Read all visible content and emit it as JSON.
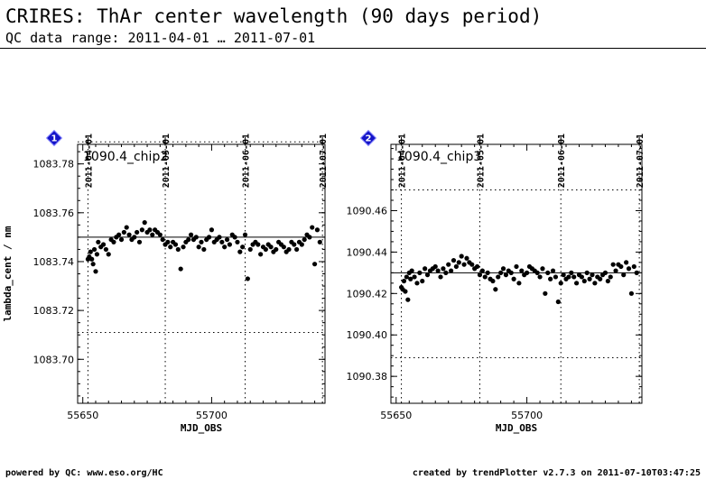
{
  "header": {
    "title": "CRIRES: ThAr center wavelength (90 days period)",
    "subtitle": "QC data range: 2011-04-01 … 2011-07-01"
  },
  "footer": {
    "left": "powered by QC: www.eso.org/HC",
    "right": "created by trendPlotter v2.7.3 on 2011-07-10T03:47:25"
  },
  "colors": {
    "points": "#000000",
    "badge": "#1515c8",
    "background": "#ffffff"
  },
  "chart_data": [
    {
      "type": "scatter",
      "badge": "1",
      "label": "1090.4_chip2",
      "xlabel": "MJD_OBS",
      "ylabel": "lambda_cent / nm",
      "xlim": [
        55648,
        55744
      ],
      "ylim": [
        1083.682,
        1083.788
      ],
      "x_ticks": [
        "55650",
        "55700"
      ],
      "x_tick_values": [
        55650,
        55700
      ],
      "y_ticks": [
        "1083.70",
        "1083.72",
        "1083.74",
        "1083.76",
        "1083.78"
      ],
      "y_tick_values": [
        1083.7,
        1083.72,
        1083.74,
        1083.76,
        1083.78
      ],
      "top_dates": [
        "2011-04-01",
        "2011-05-01",
        "2011-06-01",
        "2011-07-01"
      ],
      "top_date_values": [
        55652,
        55682,
        55713,
        55743
      ],
      "reference_line": 1083.75,
      "threshold_lines": [
        1083.711,
        1083.789
      ],
      "x": [
        55652.0,
        55652.5,
        55653.0,
        55653.5,
        55654.0,
        55654.5,
        55655.0,
        55655.5,
        55656.0,
        55657.0,
        55658.0,
        55659.0,
        55660.0,
        55661.0,
        55662.0,
        55663.0,
        55664.0,
        55665.0,
        55666.0,
        55667.0,
        55668.0,
        55669.0,
        55670.0,
        55671.0,
        55672.0,
        55673.0,
        55674.0,
        55675.0,
        55676.0,
        55677.0,
        55678.0,
        55679.0,
        55680.0,
        55681.0,
        55682.0,
        55683.0,
        55684.0,
        55685.0,
        55686.0,
        55687.0,
        55688.0,
        55689.0,
        55690.0,
        55691.0,
        55692.0,
        55693.0,
        55694.0,
        55695.0,
        55696.0,
        55697.0,
        55698.0,
        55699.0,
        55700.0,
        55701.0,
        55702.0,
        55703.0,
        55704.0,
        55705.0,
        55706.0,
        55707.0,
        55708.0,
        55709.0,
        55710.0,
        55711.0,
        55712.0,
        55713.0,
        55714.0,
        55715.0,
        55716.0,
        55717.0,
        55718.0,
        55719.0,
        55720.0,
        55721.0,
        55722.0,
        55723.0,
        55724.0,
        55725.0,
        55726.0,
        55727.0,
        55728.0,
        55729.0,
        55730.0,
        55731.0,
        55732.0,
        55733.0,
        55734.0,
        55735.0,
        55736.0,
        55737.0,
        55738.0,
        55739.0,
        55740.0,
        55741.0,
        55742.0
      ],
      "y": [
        1083.741,
        1083.742,
        1083.744,
        1083.741,
        1083.739,
        1083.745,
        1083.736,
        1083.743,
        1083.748,
        1083.746,
        1083.747,
        1083.745,
        1083.743,
        1083.749,
        1083.748,
        1083.75,
        1083.751,
        1083.749,
        1083.752,
        1083.754,
        1083.751,
        1083.749,
        1083.75,
        1083.752,
        1083.748,
        1083.753,
        1083.756,
        1083.752,
        1083.753,
        1083.751,
        1083.753,
        1083.752,
        1083.751,
        1083.749,
        1083.747,
        1083.748,
        1083.746,
        1083.748,
        1083.747,
        1083.745,
        1083.737,
        1083.746,
        1083.748,
        1083.749,
        1083.751,
        1083.749,
        1083.75,
        1083.746,
        1083.748,
        1083.745,
        1083.749,
        1083.75,
        1083.753,
        1083.748,
        1083.749,
        1083.75,
        1083.748,
        1083.746,
        1083.749,
        1083.747,
        1083.751,
        1083.75,
        1083.748,
        1083.744,
        1083.746,
        1083.751,
        1083.733,
        1083.745,
        1083.747,
        1083.748,
        1083.747,
        1083.743,
        1083.746,
        1083.745,
        1083.747,
        1083.746,
        1083.744,
        1083.745,
        1083.748,
        1083.747,
        1083.746,
        1083.744,
        1083.745,
        1083.748,
        1083.747,
        1083.745,
        1083.748,
        1083.747,
        1083.749,
        1083.751,
        1083.75,
        1083.754,
        1083.739,
        1083.753,
        1083.748
      ]
    },
    {
      "type": "scatter",
      "badge": "2",
      "label": "1090.4_chip3",
      "xlabel": "MJD_OBS",
      "ylabel": "",
      "xlim": [
        55648,
        55744
      ],
      "ylim": [
        1090.367,
        1090.492
      ],
      "x_ticks": [
        "55650",
        "55700"
      ],
      "x_tick_values": [
        55650,
        55700
      ],
      "y_ticks": [
        "1090.38",
        "1090.40",
        "1090.42",
        "1090.44",
        "1090.46"
      ],
      "y_tick_values": [
        1090.38,
        1090.4,
        1090.42,
        1090.44,
        1090.46
      ],
      "top_dates": [
        "2011-04-01",
        "2011-05-01",
        "2011-06-01",
        "2011-07-01"
      ],
      "top_date_values": [
        55652,
        55682,
        55713,
        55743
      ],
      "reference_line": 1090.43,
      "threshold_lines": [
        1090.389,
        1090.47
      ],
      "x": [
        55652.0,
        55652.5,
        55653.0,
        55653.5,
        55654.0,
        55654.5,
        55655.0,
        55655.5,
        55656.0,
        55657.0,
        55658.0,
        55659.0,
        55660.0,
        55661.0,
        55662.0,
        55663.0,
        55664.0,
        55665.0,
        55666.0,
        55667.0,
        55668.0,
        55669.0,
        55670.0,
        55671.0,
        55672.0,
        55673.0,
        55674.0,
        55675.0,
        55676.0,
        55677.0,
        55678.0,
        55679.0,
        55680.0,
        55681.0,
        55682.0,
        55683.0,
        55684.0,
        55685.0,
        55686.0,
        55687.0,
        55688.0,
        55689.0,
        55690.0,
        55691.0,
        55692.0,
        55693.0,
        55694.0,
        55695.0,
        55696.0,
        55697.0,
        55698.0,
        55699.0,
        55700.0,
        55701.0,
        55702.0,
        55703.0,
        55704.0,
        55705.0,
        55706.0,
        55707.0,
        55708.0,
        55709.0,
        55710.0,
        55711.0,
        55712.0,
        55713.0,
        55714.0,
        55715.0,
        55716.0,
        55717.0,
        55718.0,
        55719.0,
        55720.0,
        55721.0,
        55722.0,
        55723.0,
        55724.0,
        55725.0,
        55726.0,
        55727.0,
        55728.0,
        55729.0,
        55730.0,
        55731.0,
        55732.0,
        55733.0,
        55734.0,
        55735.0,
        55736.0,
        55737.0,
        55738.0,
        55739.0,
        55740.0,
        55741.0,
        55742.0
      ],
      "y": [
        1090.423,
        1090.422,
        1090.426,
        1090.421,
        1090.428,
        1090.417,
        1090.43,
        1090.427,
        1090.431,
        1090.428,
        1090.425,
        1090.43,
        1090.426,
        1090.432,
        1090.429,
        1090.431,
        1090.432,
        1090.433,
        1090.431,
        1090.428,
        1090.432,
        1090.43,
        1090.434,
        1090.431,
        1090.436,
        1090.433,
        1090.435,
        1090.438,
        1090.434,
        1090.437,
        1090.435,
        1090.434,
        1090.432,
        1090.433,
        1090.429,
        1090.431,
        1090.428,
        1090.43,
        1090.427,
        1090.426,
        1090.422,
        1090.428,
        1090.43,
        1090.432,
        1090.429,
        1090.431,
        1090.43,
        1090.427,
        1090.433,
        1090.425,
        1090.431,
        1090.429,
        1090.43,
        1090.433,
        1090.432,
        1090.431,
        1090.43,
        1090.428,
        1090.432,
        1090.42,
        1090.43,
        1090.427,
        1090.431,
        1090.428,
        1090.416,
        1090.425,
        1090.429,
        1090.427,
        1090.428,
        1090.43,
        1090.428,
        1090.425,
        1090.429,
        1090.428,
        1090.426,
        1090.43,
        1090.427,
        1090.429,
        1090.425,
        1090.428,
        1090.427,
        1090.429,
        1090.43,
        1090.426,
        1090.428,
        1090.434,
        1090.431,
        1090.434,
        1090.433,
        1090.429,
        1090.435,
        1090.432,
        1090.42,
        1090.433,
        1090.43
      ]
    }
  ]
}
